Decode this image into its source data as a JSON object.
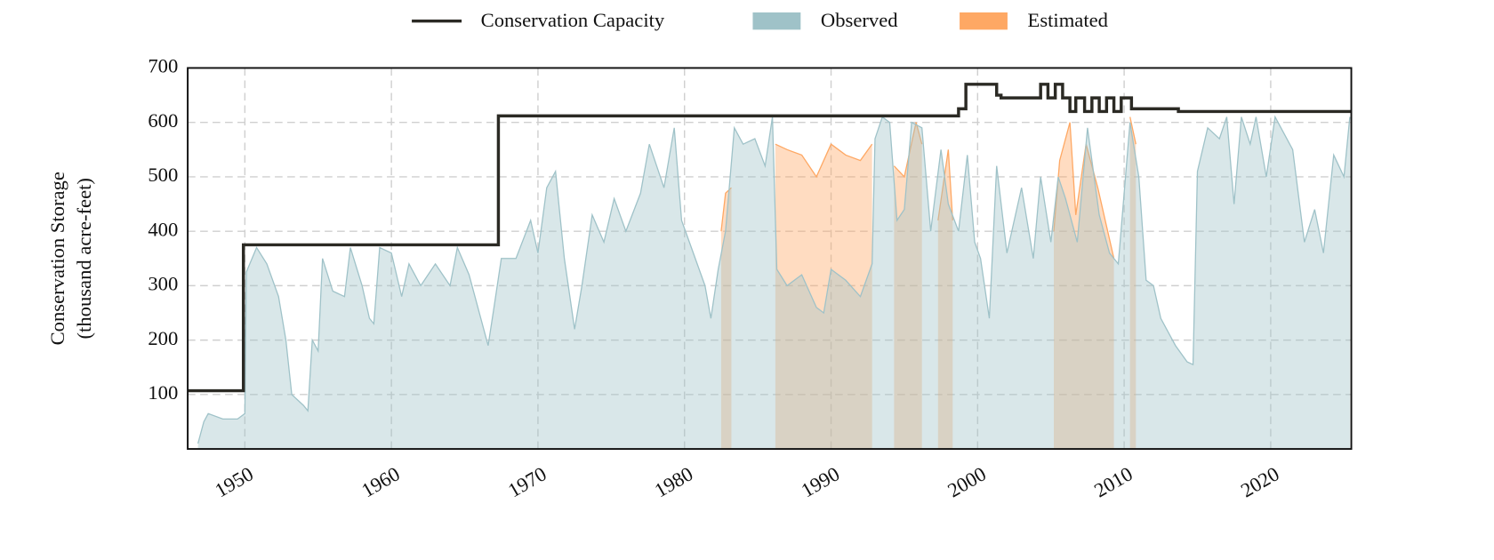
{
  "chart_data": {
    "type": "area",
    "ylabel": [
      "Conservation Storage",
      "(thousand acre-feet)"
    ],
    "xlim": [
      1946.1,
      2025.5
    ],
    "xticks": [
      1950,
      1960,
      1970,
      1980,
      1990,
      2000,
      2010,
      2020
    ],
    "ylim": [
      0,
      700
    ],
    "yticks": [
      100,
      200,
      300,
      400,
      500,
      600,
      700
    ],
    "grid": true,
    "line": {
      "name": "Conservation Capacity",
      "color": "#2b2a24",
      "x": [
        1946.1,
        1949.9,
        1949.9,
        1967.3,
        1967.3,
        1998.7,
        1998.7,
        1999.2,
        1999.2,
        2001.3,
        2001.3,
        2001.6,
        2001.6,
        2004.3,
        2004.3,
        2004.8,
        2004.8,
        2005.3,
        2005.3,
        2005.8,
        2005.8,
        2006.3,
        2006.3,
        2006.7,
        2006.7,
        2007.3,
        2007.3,
        2007.8,
        2007.8,
        2008.3,
        2008.3,
        2008.8,
        2008.8,
        2009.3,
        2009.3,
        2009.8,
        2009.8,
        2010.5,
        2010.5,
        2013.7,
        2013.7,
        2025.5
      ],
      "values": [
        107,
        107,
        375,
        375,
        612,
        612,
        625,
        625,
        670,
        670,
        650,
        650,
        645,
        645,
        670,
        670,
        645,
        645,
        670,
        670,
        645,
        645,
        620,
        620,
        645,
        645,
        620,
        620,
        645,
        645,
        620,
        620,
        645,
        645,
        620,
        620,
        645,
        645,
        625,
        625,
        620,
        620
      ]
    },
    "series": [
      {
        "name": "Estimated",
        "color": "#fea864",
        "x": [
          1982.5,
          1982.8,
          1983.2,
          1983.6,
          1986.2,
          1987,
          1988,
          1989,
          1990,
          1991,
          1992,
          1992.8,
          1993.2,
          1994.3,
          1995,
          1995.8,
          1996.2,
          1996.6,
          1997.3,
          1998,
          1998.3,
          1998.6,
          2005.2,
          2005.6,
          2006.3,
          2006.7,
          2007.4,
          2008.2,
          2009.3,
          2009.8,
          2010.4,
          2010.8
        ],
        "values": [
          400,
          470,
          480,
          null,
          560,
          550,
          540,
          500,
          560,
          540,
          530,
          560,
          null,
          520,
          500,
          600,
          560,
          null,
          420,
          550,
          420,
          null,
          400,
          530,
          600,
          430,
          560,
          480,
          350,
          null,
          610,
          560
        ]
      },
      {
        "name": "Observed",
        "color": "#9fc2c8",
        "x": [
          1946.8,
          1947.2,
          1947.5,
          1948.5,
          1949.5,
          1950,
          1950.1,
          1950.8,
          1951.5,
          1952.3,
          1952.8,
          1953.2,
          1954,
          1954.3,
          1954.6,
          1955,
          1955.3,
          1956,
          1956.8,
          1957.2,
          1958,
          1958.5,
          1958.8,
          1959.2,
          1960,
          1960.7,
          1961.2,
          1962,
          1963,
          1964,
          1964.5,
          1965.3,
          1966,
          1966.6,
          1967,
          1967.5,
          1968.5,
          1969.5,
          1970,
          1970.6,
          1971.2,
          1971.8,
          1972.5,
          1973,
          1973.7,
          1974.5,
          1975.2,
          1976,
          1977,
          1977.6,
          1978.6,
          1979.3,
          1979.8,
          1980.6,
          1981.4,
          1981.8,
          1982.3,
          1982.8,
          1983.4,
          1984,
          1984.8,
          1985.5,
          1986,
          1986.3,
          1987,
          1988,
          1989,
          1989.5,
          1990,
          1991,
          1992,
          1992.8,
          1993,
          1993.5,
          1994,
          1994.5,
          1995,
          1995.5,
          1996.2,
          1996.8,
          1997.5,
          1998,
          1998.7,
          1999.3,
          1999.8,
          2000.2,
          2000.8,
          2001.3,
          2002,
          2003,
          2003.8,
          2004.3,
          2005,
          2005.5,
          2006,
          2006.8,
          2007.5,
          2008.3,
          2009,
          2009.6,
          2010.4,
          2011,
          2011.5,
          2012,
          2012.5,
          2013.5,
          2014.3,
          2014.7,
          2015,
          2015.7,
          2016.5,
          2017,
          2017.5,
          2018,
          2018.6,
          2019,
          2019.7,
          2020.3,
          2021.5,
          2022.3,
          2023,
          2023.6,
          2024.3,
          2025,
          2025.4
        ],
        "values": [
          10,
          50,
          65,
          55,
          55,
          65,
          325,
          370,
          340,
          280,
          200,
          100,
          80,
          70,
          200,
          180,
          350,
          290,
          280,
          370,
          300,
          240,
          230,
          370,
          360,
          280,
          340,
          300,
          340,
          300,
          370,
          320,
          250,
          190,
          260,
          350,
          350,
          420,
          360,
          480,
          510,
          350,
          220,
          300,
          430,
          380,
          460,
          400,
          470,
          560,
          480,
          590,
          420,
          360,
          300,
          240,
          330,
          400,
          590,
          560,
          570,
          520,
          610,
          330,
          300,
          320,
          260,
          250,
          330,
          310,
          280,
          340,
          570,
          610,
          600,
          420,
          440,
          600,
          590,
          400,
          550,
          450,
          400,
          540,
          380,
          350,
          240,
          520,
          360,
          480,
          350,
          500,
          380,
          500,
          460,
          380,
          590,
          430,
          360,
          340,
          600,
          500,
          310,
          300,
          240,
          190,
          160,
          155,
          510,
          590,
          570,
          610,
          450,
          610,
          560,
          610,
          500,
          610,
          550,
          380,
          440,
          360,
          540,
          500,
          610
        ]
      }
    ]
  }
}
